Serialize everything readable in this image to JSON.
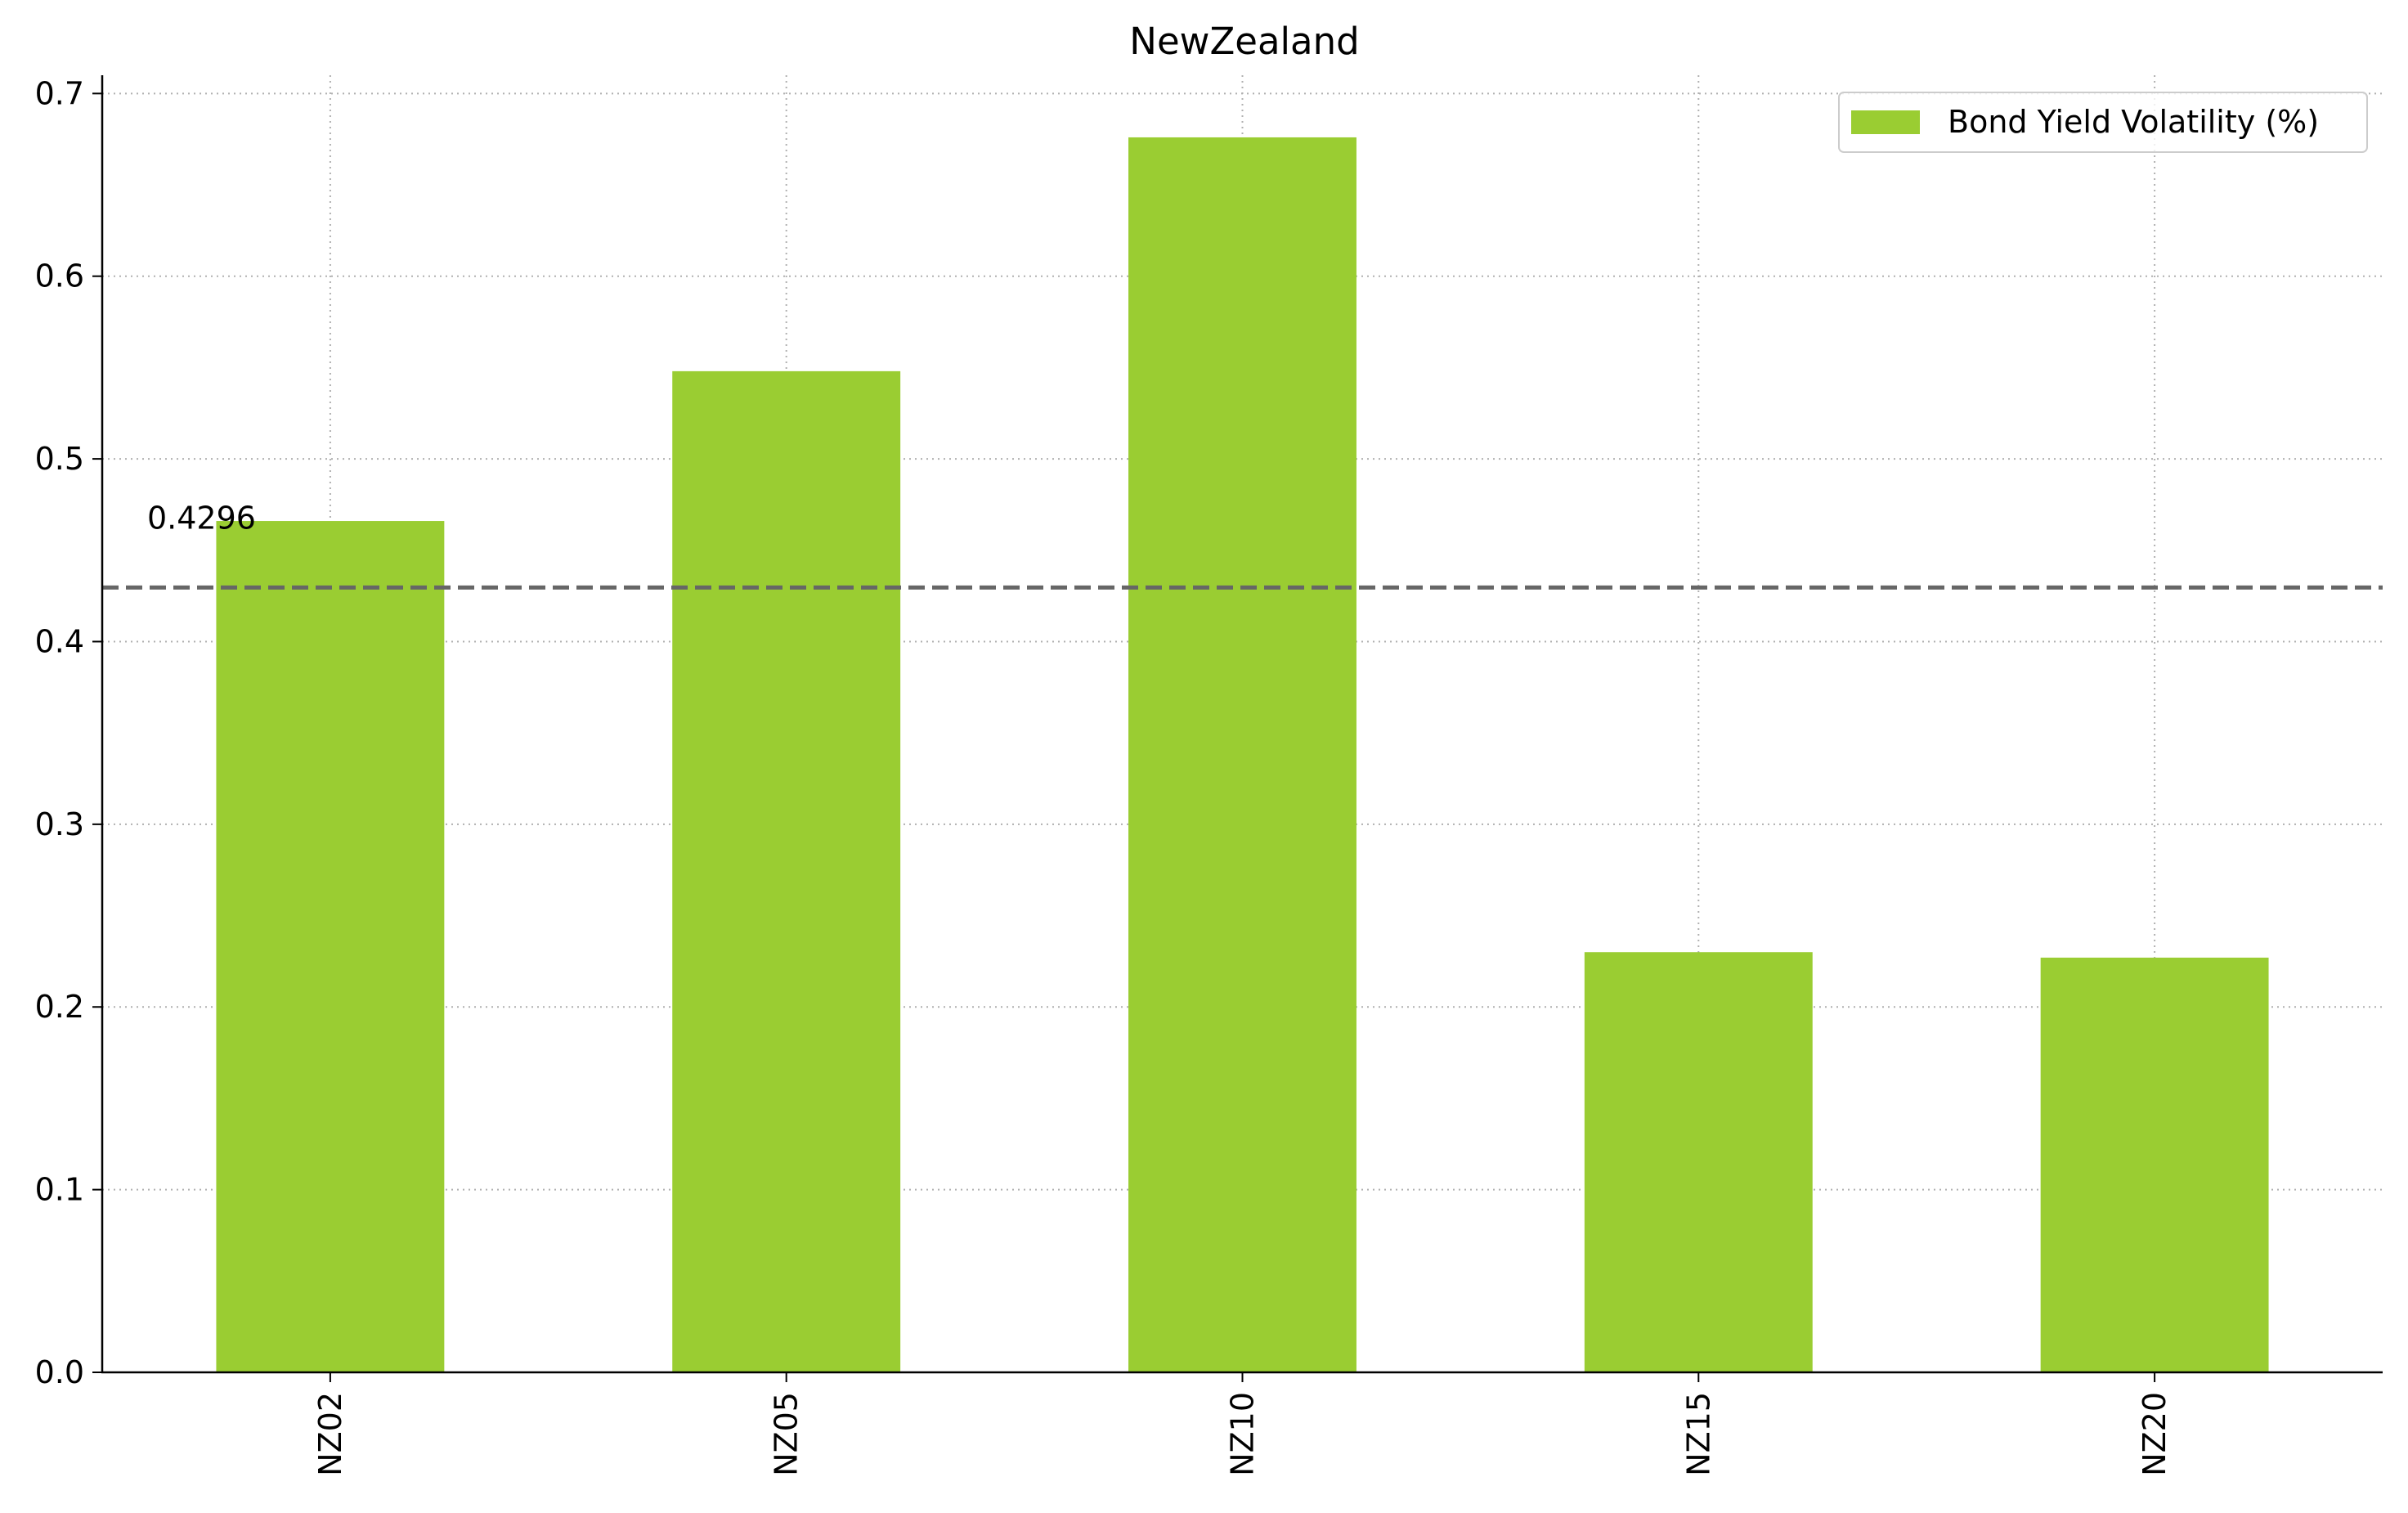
{
  "chart_data": {
    "type": "bar",
    "title": "NewZealand",
    "xlabel": "",
    "ylabel": "",
    "categories": [
      "NZ02",
      "NZ05",
      "NZ10",
      "NZ15",
      "NZ20"
    ],
    "series": [
      {
        "name": "Bond Yield Volatility (%)",
        "values": [
          0.466,
          0.548,
          0.676,
          0.23,
          0.227
        ],
        "color": "#9acd32"
      }
    ],
    "ylim": [
      0,
      0.71
    ],
    "yticks": [
      "0.0",
      "0.1",
      "0.2",
      "0.3",
      "0.4",
      "0.5",
      "0.6",
      "0.7"
    ],
    "grid": true,
    "legend_position": "top-right",
    "reference_line": {
      "value": 0.4296,
      "label": "0.4296",
      "color": "#666666",
      "style": "dashed"
    }
  }
}
